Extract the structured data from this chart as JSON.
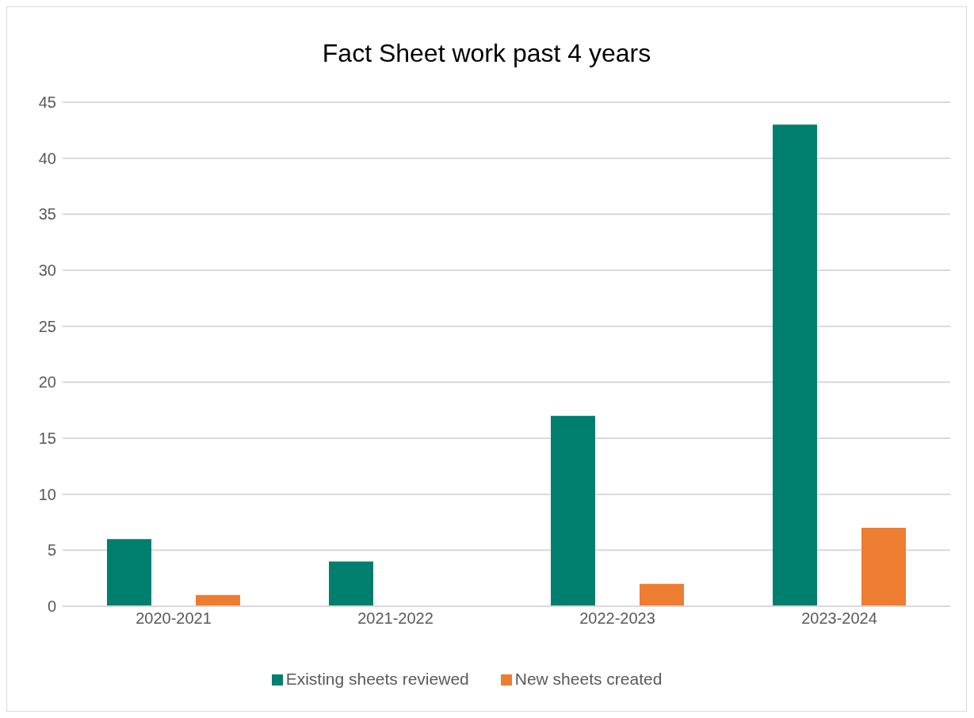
{
  "chart_data": {
    "type": "bar",
    "title": "Fact Sheet  work past 4 years",
    "categories": [
      "2020-2021",
      "2021-2022",
      "2022-2023",
      "2023-2024"
    ],
    "series": [
      {
        "name": "Existing sheets reviewed",
        "color": "#007f6e",
        "values": [
          6,
          4,
          17,
          43
        ]
      },
      {
        "name": "New sheets created",
        "color": "#ed7d31",
        "values": [
          1,
          0,
          2,
          7
        ]
      }
    ],
    "ylim": [
      0,
      45
    ],
    "yticks": [
      0,
      5,
      10,
      15,
      20,
      25,
      30,
      35,
      40,
      45
    ],
    "grid": "y",
    "legend": "bottom"
  }
}
